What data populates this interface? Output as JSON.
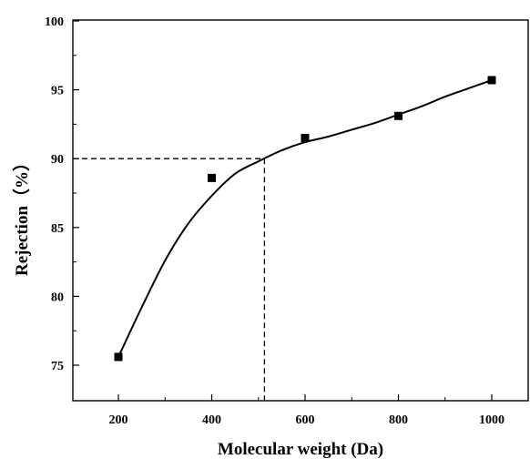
{
  "chart_data": {
    "type": "scatter",
    "title": "",
    "xlabel": "Molecular weight (Da)",
    "ylabel": "Rejection（%）",
    "xlim": [
      100,
      1080
    ],
    "ylim": [
      72.5,
      100
    ],
    "x_ticks": [
      200,
      400,
      600,
      800,
      1000
    ],
    "y_ticks": [
      75,
      80,
      85,
      90,
      95,
      100
    ],
    "grid": false,
    "legend": "none",
    "series": [
      {
        "type": "scatter",
        "marker": "square",
        "points": [
          {
            "x": 200,
            "y": 75.6
          },
          {
            "x": 400,
            "y": 88.6
          },
          {
            "x": 600,
            "y": 91.5
          },
          {
            "x": 800,
            "y": 93.1
          },
          {
            "x": 1000,
            "y": 95.7
          }
        ]
      },
      {
        "type": "line",
        "style": "solid",
        "points": [
          {
            "x": 200,
            "y": 75.6
          },
          {
            "x": 250,
            "y": 79.2
          },
          {
            "x": 300,
            "y": 82.6
          },
          {
            "x": 350,
            "y": 85.3
          },
          {
            "x": 400,
            "y": 87.3
          },
          {
            "x": 450,
            "y": 88.9
          },
          {
            "x": 500,
            "y": 89.8
          },
          {
            "x": 550,
            "y": 90.6
          },
          {
            "x": 600,
            "y": 91.2
          },
          {
            "x": 650,
            "y": 91.6
          },
          {
            "x": 700,
            "y": 92.1
          },
          {
            "x": 750,
            "y": 92.6
          },
          {
            "x": 800,
            "y": 93.2
          },
          {
            "x": 850,
            "y": 93.8
          },
          {
            "x": 900,
            "y": 94.5
          },
          {
            "x": 950,
            "y": 95.1
          },
          {
            "x": 1000,
            "y": 95.7
          }
        ]
      }
    ],
    "reference_lines": {
      "style": "dashed",
      "horizontal_y": 90,
      "vertical_x": 513
    }
  }
}
